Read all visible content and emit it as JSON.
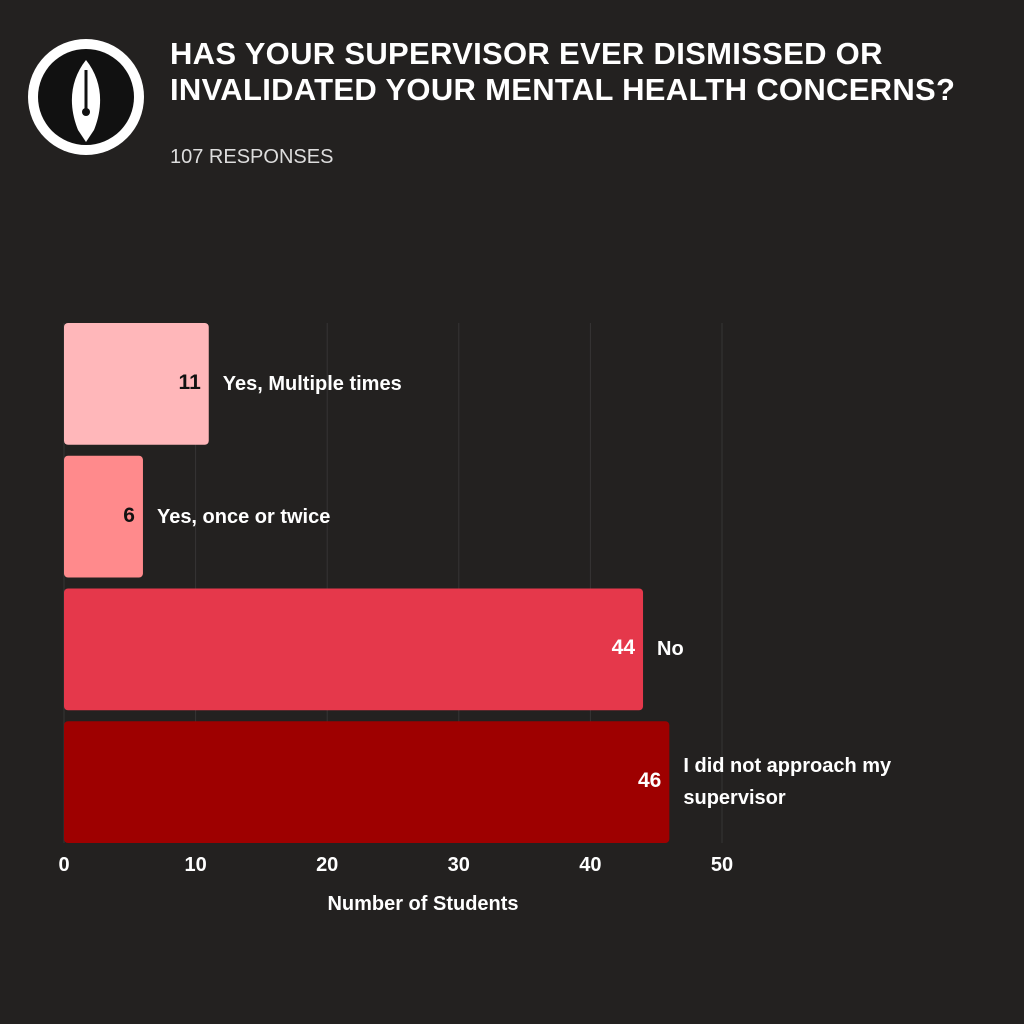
{
  "chart_data": {
    "type": "barh",
    "title": "HAS YOUR SUPERVISOR EVER DISMISSED OR INVALIDATED YOUR MENTAL HEALTH CONCERNS?",
    "subtitle": "107 RESPONSES",
    "categories": [
      "Yes, Multiple times",
      "Yes, once or twice",
      "No",
      "I did not approach my supervisor"
    ],
    "values": [
      11,
      6,
      44,
      46
    ],
    "colors": [
      "#ffb7ba",
      "#ff8a8c",
      "#e5384b",
      "#9e0000"
    ],
    "xlim": [
      0,
      50
    ],
    "xticks": [
      0,
      10,
      20,
      30,
      40,
      50
    ],
    "xlabel": "Number of Students",
    "grid": true
  }
}
